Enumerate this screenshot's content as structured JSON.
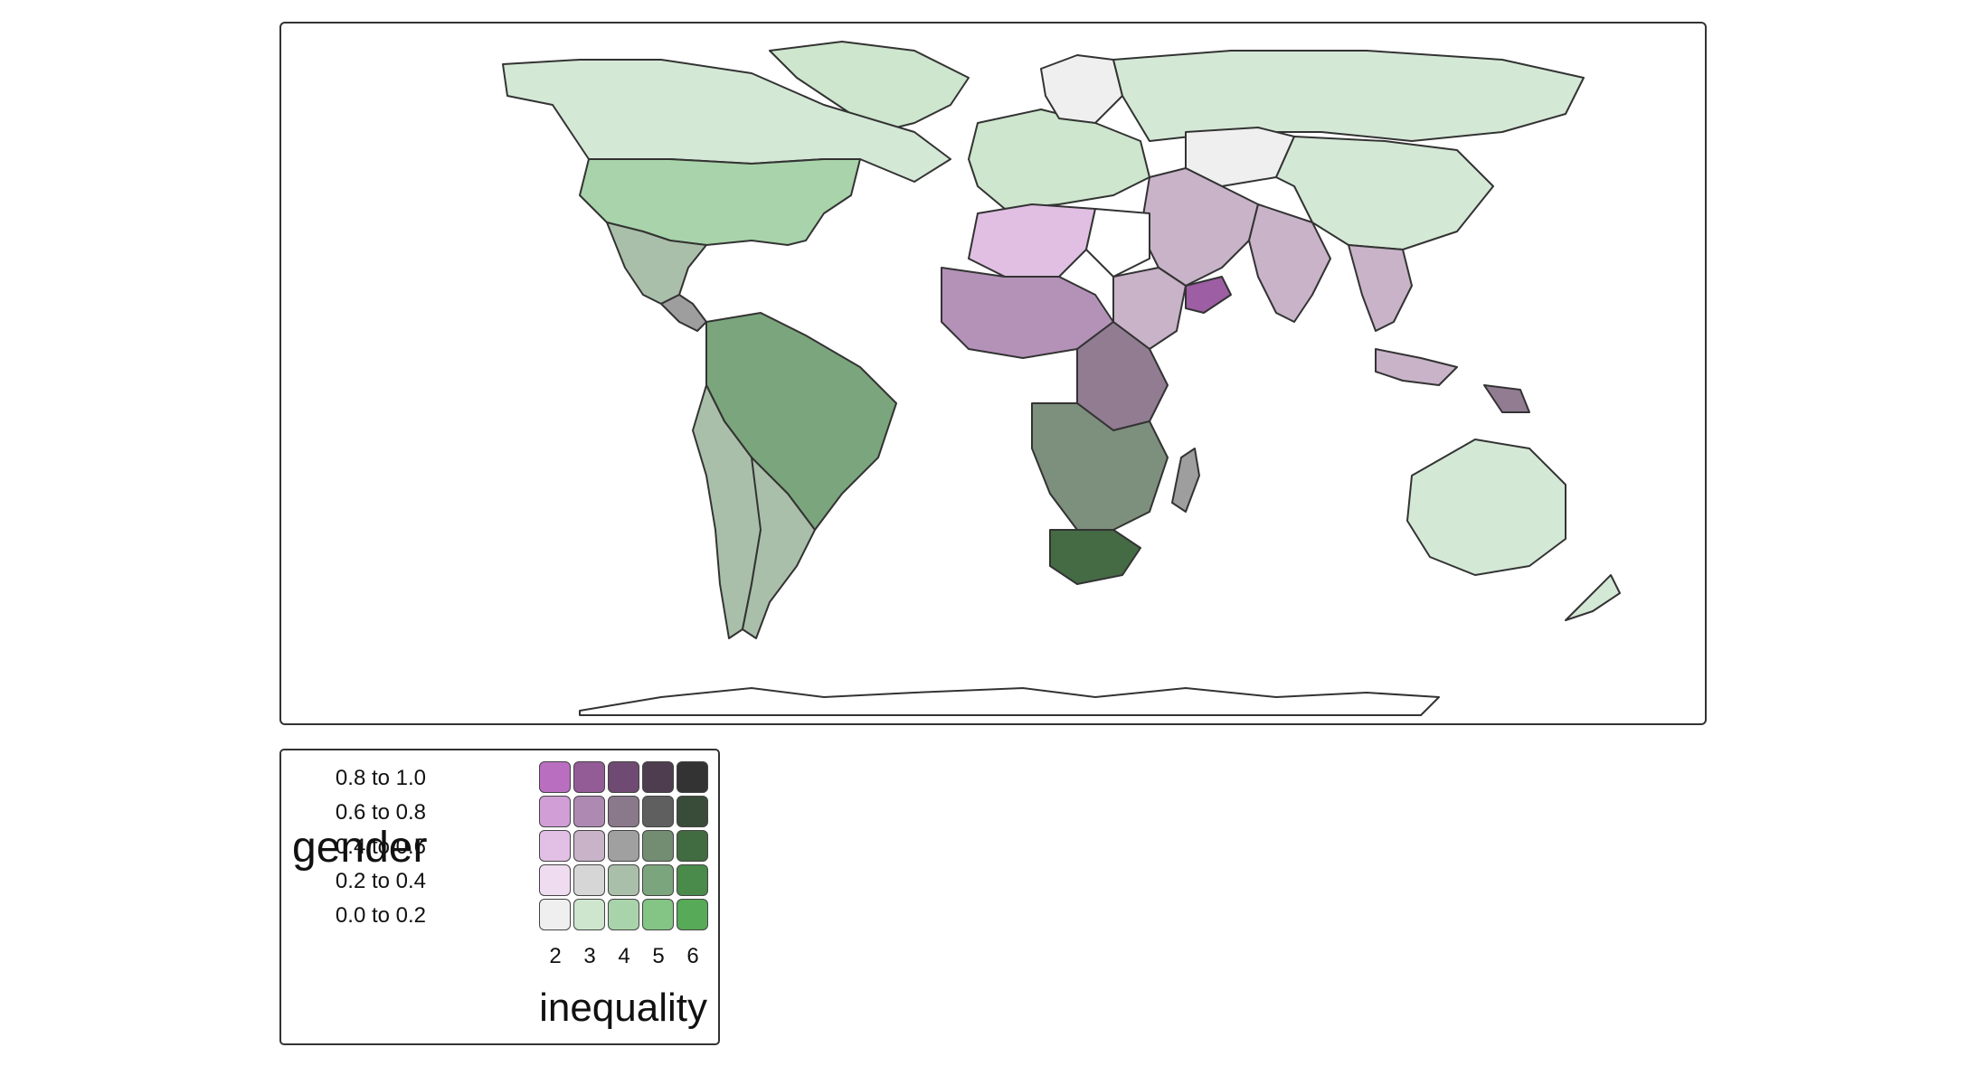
{
  "map": {
    "continents": [
      {
        "name": "greenland",
        "color": "#cde6cd"
      },
      {
        "name": "north-america-canada",
        "color": "#d4e8d6"
      },
      {
        "name": "usa",
        "color": "#a9d3aa"
      },
      {
        "name": "mexico",
        "color": "#a9bfa9"
      },
      {
        "name": "central-america",
        "color": "#9e9e9e"
      },
      {
        "name": "south-america-brazil",
        "color": "#7ba57c"
      },
      {
        "name": "andes-west",
        "color": "#a9bfa9"
      },
      {
        "name": "argentina",
        "color": "#a9bfa9"
      },
      {
        "name": "europe-west",
        "color": "#cde6cd"
      },
      {
        "name": "scandinavia",
        "color": "#efefef"
      },
      {
        "name": "russia",
        "color": "#d4e8d6"
      },
      {
        "name": "kazakhstan",
        "color": "#efefef"
      },
      {
        "name": "china",
        "color": "#d4e8d6"
      },
      {
        "name": "middle-east",
        "color": "#c8b3c8"
      },
      {
        "name": "india",
        "color": "#c8b3c8"
      },
      {
        "name": "southeast-asia",
        "color": "#c8b3c8"
      },
      {
        "name": "north-africa-west",
        "color": "#e1bfe3"
      },
      {
        "name": "west-africa",
        "color": "#b492b8"
      },
      {
        "name": "sahel-east",
        "color": "#c8b3c8"
      },
      {
        "name": "central-africa",
        "color": "#917c92"
      },
      {
        "name": "southern-africa",
        "color": "#7d8f7d"
      },
      {
        "name": "south-africa",
        "color": "#456b45"
      },
      {
        "name": "madagascar",
        "color": "#9e9e9e"
      },
      {
        "name": "yemen",
        "color": "#9d5ea3"
      },
      {
        "name": "australia",
        "color": "#d4e8d6"
      },
      {
        "name": "new-zealand",
        "color": "#d4e8d6"
      },
      {
        "name": "indonesia",
        "color": "#c8b3c8"
      },
      {
        "name": "papua",
        "color": "#917c92"
      },
      {
        "name": "antarctica",
        "color": "#ffffff"
      }
    ]
  },
  "legend": {
    "y_title": "gender",
    "x_title": "inequality",
    "row_labels": [
      "0.8 to 1.0",
      "0.6 to 0.8",
      "0.4 to 0.6",
      "0.2 to 0.4",
      "0.0 to 0.2"
    ],
    "col_labels": [
      "2",
      "3",
      "4",
      "5",
      "6"
    ],
    "grid_colors": [
      [
        "#b96ec0",
        "#935c96",
        "#6f4a72",
        "#4d3d4f",
        "#333333"
      ],
      [
        "#d19ed6",
        "#ae8ab3",
        "#8a788b",
        "#5f5f5f",
        "#394c39"
      ],
      [
        "#e2bfe5",
        "#c8b3c8",
        "#a0a0a0",
        "#728d72",
        "#416b41"
      ],
      [
        "#efdcf0",
        "#d6d6d6",
        "#a9bfa9",
        "#7ba57c",
        "#4a8a4b"
      ],
      [
        "#efefef",
        "#cde6cd",
        "#a9d3aa",
        "#84c485",
        "#57aa58"
      ]
    ]
  }
}
